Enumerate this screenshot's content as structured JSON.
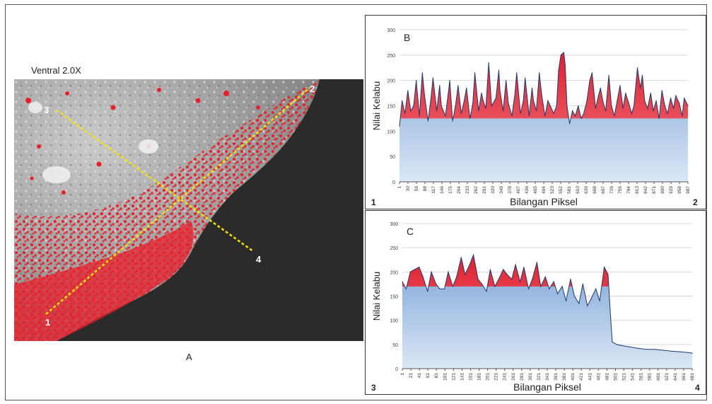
{
  "figure": {
    "title_a": "Ventral 2.0X",
    "caption_a": "A",
    "line_points": [
      "1",
      "2",
      "3",
      "4"
    ]
  },
  "colors": {
    "highlight": "#e8202c",
    "profile_fill_top": "#7aa3d6",
    "profile_fill_bottom": "#dbe7f5",
    "profile_line": "#1f3a68",
    "profile_red": "#e02030",
    "transect_line": "#f2e600"
  },
  "chart_data": [
    {
      "panel": "B",
      "type": "area",
      "xlabel": "Bilangan Piksel",
      "ylabel": "Nilai Kelabu",
      "ylim": [
        0,
        300
      ],
      "yticks": [
        0,
        50,
        100,
        150,
        200,
        250,
        300
      ],
      "xticks": [
        "1",
        "30",
        "59",
        "88",
        "117",
        "146",
        "175",
        "204",
        "233",
        "262",
        "291",
        "320",
        "349",
        "378",
        "407",
        "436",
        "465",
        "494",
        "523",
        "552",
        "581",
        "610",
        "639",
        "668",
        "697",
        "726",
        "755",
        "784",
        "813",
        "842",
        "871",
        "900",
        "929",
        "958",
        "987"
      ],
      "red_threshold": 125,
      "end_labels": [
        "1",
        "2"
      ],
      "x": [
        1,
        10,
        20,
        30,
        40,
        50,
        59,
        70,
        80,
        88,
        100,
        110,
        117,
        130,
        140,
        146,
        160,
        170,
        175,
        185,
        195,
        204,
        215,
        225,
        233,
        245,
        255,
        262,
        275,
        285,
        291,
        300,
        310,
        320,
        335,
        345,
        349,
        360,
        370,
        378,
        390,
        400,
        407,
        420,
        430,
        436,
        450,
        460,
        465,
        475,
        485,
        494,
        505,
        515,
        523,
        535,
        545,
        552,
        560,
        570,
        575,
        581,
        590,
        600,
        610,
        620,
        630,
        639,
        650,
        660,
        668,
        680,
        690,
        697,
        705,
        715,
        726,
        735,
        745,
        755,
        765,
        775,
        784,
        795,
        805,
        813,
        825,
        835,
        842,
        850,
        860,
        871,
        880,
        890,
        900,
        910,
        920,
        929,
        940,
        950,
        958,
        970,
        980,
        987,
        1000
      ],
      "values": [
        110,
        160,
        135,
        180,
        140,
        150,
        200,
        130,
        215,
        170,
        120,
        165,
        205,
        140,
        190,
        150,
        130,
        175,
        200,
        120,
        150,
        190,
        135,
        160,
        185,
        125,
        155,
        215,
        140,
        175,
        160,
        145,
        235,
        150,
        165,
        220,
        180,
        140,
        200,
        155,
        130,
        170,
        215,
        135,
        160,
        205,
        130,
        185,
        160,
        140,
        215,
        170,
        130,
        160,
        150,
        135,
        150,
        220,
        250,
        255,
        230,
        150,
        115,
        140,
        130,
        150,
        125,
        135,
        160,
        200,
        215,
        145,
        170,
        185,
        160,
        140,
        210,
        150,
        130,
        160,
        190,
        145,
        175,
        155,
        135,
        150,
        225,
        185,
        210,
        160,
        145,
        175,
        140,
        160,
        125,
        180,
        150,
        135,
        165,
        145,
        170,
        155,
        130,
        165,
        150
      ]
    },
    {
      "panel": "C",
      "type": "area",
      "xlabel": "Bilangan Piksel",
      "ylabel": "Nilai Kelabu",
      "ylim": [
        0,
        300
      ],
      "yticks": [
        0,
        50,
        100,
        150,
        200,
        250,
        300
      ],
      "xticks": [
        "1",
        "21",
        "41",
        "61",
        "81",
        "101",
        "121",
        "141",
        "161",
        "181",
        "201",
        "221",
        "241",
        "261",
        "281",
        "301",
        "321",
        "341",
        "361",
        "381",
        "401",
        "421",
        "441",
        "461",
        "481",
        "501",
        "521",
        "541",
        "561",
        "581",
        "601",
        "621",
        "641",
        "661",
        "681"
      ],
      "red_threshold": 170,
      "end_labels": [
        "3",
        "4"
      ],
      "x": [
        1,
        10,
        20,
        30,
        41,
        50,
        61,
        70,
        81,
        90,
        101,
        110,
        121,
        130,
        141,
        150,
        161,
        170,
        181,
        190,
        201,
        210,
        221,
        230,
        241,
        250,
        261,
        270,
        281,
        290,
        301,
        310,
        321,
        330,
        341,
        350,
        361,
        370,
        381,
        390,
        401,
        410,
        421,
        430,
        441,
        450,
        461,
        470,
        481,
        490,
        495,
        500,
        510,
        521,
        541,
        561,
        581,
        601,
        621,
        641,
        661,
        681,
        690
      ],
      "values": [
        180,
        165,
        200,
        205,
        210,
        190,
        160,
        200,
        175,
        165,
        165,
        200,
        170,
        190,
        230,
        195,
        215,
        235,
        185,
        175,
        160,
        205,
        170,
        185,
        205,
        195,
        185,
        215,
        180,
        210,
        165,
        185,
        220,
        170,
        190,
        165,
        180,
        155,
        170,
        140,
        185,
        150,
        135,
        175,
        130,
        145,
        165,
        140,
        210,
        195,
        120,
        55,
        50,
        48,
        45,
        42,
        40,
        40,
        38,
        36,
        35,
        33,
        32
      ]
    }
  ]
}
